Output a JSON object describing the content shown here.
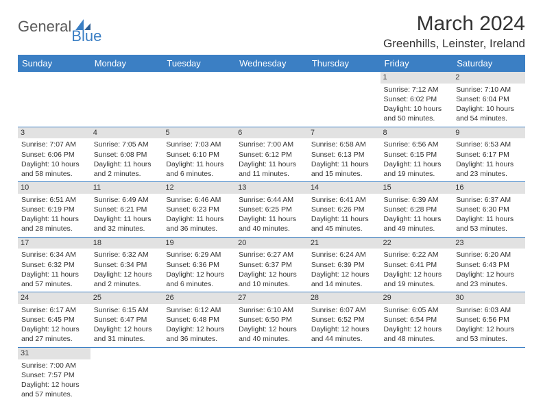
{
  "logo": {
    "text1": "General",
    "text2": "Blue"
  },
  "title": "March 2024",
  "location": "Greenhills, Leinster, Ireland",
  "colors": {
    "header_bg": "#3b7fc4",
    "header_text": "#ffffff",
    "daynum_bg": "#e2e2e2",
    "cell_border": "#3b7fc4",
    "body_text": "#333333",
    "logo_gray": "#5a5a5a",
    "logo_blue": "#3b7fc4"
  },
  "weekdays": [
    "Sunday",
    "Monday",
    "Tuesday",
    "Wednesday",
    "Thursday",
    "Friday",
    "Saturday"
  ],
  "weeks": [
    [
      {
        "empty": true
      },
      {
        "empty": true
      },
      {
        "empty": true
      },
      {
        "empty": true
      },
      {
        "empty": true
      },
      {
        "day": "1",
        "sunrise": "Sunrise: 7:12 AM",
        "sunset": "Sunset: 6:02 PM",
        "daylight1": "Daylight: 10 hours",
        "daylight2": "and 50 minutes."
      },
      {
        "day": "2",
        "sunrise": "Sunrise: 7:10 AM",
        "sunset": "Sunset: 6:04 PM",
        "daylight1": "Daylight: 10 hours",
        "daylight2": "and 54 minutes."
      }
    ],
    [
      {
        "day": "3",
        "sunrise": "Sunrise: 7:07 AM",
        "sunset": "Sunset: 6:06 PM",
        "daylight1": "Daylight: 10 hours",
        "daylight2": "and 58 minutes."
      },
      {
        "day": "4",
        "sunrise": "Sunrise: 7:05 AM",
        "sunset": "Sunset: 6:08 PM",
        "daylight1": "Daylight: 11 hours",
        "daylight2": "and 2 minutes."
      },
      {
        "day": "5",
        "sunrise": "Sunrise: 7:03 AM",
        "sunset": "Sunset: 6:10 PM",
        "daylight1": "Daylight: 11 hours",
        "daylight2": "and 6 minutes."
      },
      {
        "day": "6",
        "sunrise": "Sunrise: 7:00 AM",
        "sunset": "Sunset: 6:12 PM",
        "daylight1": "Daylight: 11 hours",
        "daylight2": "and 11 minutes."
      },
      {
        "day": "7",
        "sunrise": "Sunrise: 6:58 AM",
        "sunset": "Sunset: 6:13 PM",
        "daylight1": "Daylight: 11 hours",
        "daylight2": "and 15 minutes."
      },
      {
        "day": "8",
        "sunrise": "Sunrise: 6:56 AM",
        "sunset": "Sunset: 6:15 PM",
        "daylight1": "Daylight: 11 hours",
        "daylight2": "and 19 minutes."
      },
      {
        "day": "9",
        "sunrise": "Sunrise: 6:53 AM",
        "sunset": "Sunset: 6:17 PM",
        "daylight1": "Daylight: 11 hours",
        "daylight2": "and 23 minutes."
      }
    ],
    [
      {
        "day": "10",
        "sunrise": "Sunrise: 6:51 AM",
        "sunset": "Sunset: 6:19 PM",
        "daylight1": "Daylight: 11 hours",
        "daylight2": "and 28 minutes."
      },
      {
        "day": "11",
        "sunrise": "Sunrise: 6:49 AM",
        "sunset": "Sunset: 6:21 PM",
        "daylight1": "Daylight: 11 hours",
        "daylight2": "and 32 minutes."
      },
      {
        "day": "12",
        "sunrise": "Sunrise: 6:46 AM",
        "sunset": "Sunset: 6:23 PM",
        "daylight1": "Daylight: 11 hours",
        "daylight2": "and 36 minutes."
      },
      {
        "day": "13",
        "sunrise": "Sunrise: 6:44 AM",
        "sunset": "Sunset: 6:25 PM",
        "daylight1": "Daylight: 11 hours",
        "daylight2": "and 40 minutes."
      },
      {
        "day": "14",
        "sunrise": "Sunrise: 6:41 AM",
        "sunset": "Sunset: 6:26 PM",
        "daylight1": "Daylight: 11 hours",
        "daylight2": "and 45 minutes."
      },
      {
        "day": "15",
        "sunrise": "Sunrise: 6:39 AM",
        "sunset": "Sunset: 6:28 PM",
        "daylight1": "Daylight: 11 hours",
        "daylight2": "and 49 minutes."
      },
      {
        "day": "16",
        "sunrise": "Sunrise: 6:37 AM",
        "sunset": "Sunset: 6:30 PM",
        "daylight1": "Daylight: 11 hours",
        "daylight2": "and 53 minutes."
      }
    ],
    [
      {
        "day": "17",
        "sunrise": "Sunrise: 6:34 AM",
        "sunset": "Sunset: 6:32 PM",
        "daylight1": "Daylight: 11 hours",
        "daylight2": "and 57 minutes."
      },
      {
        "day": "18",
        "sunrise": "Sunrise: 6:32 AM",
        "sunset": "Sunset: 6:34 PM",
        "daylight1": "Daylight: 12 hours",
        "daylight2": "and 2 minutes."
      },
      {
        "day": "19",
        "sunrise": "Sunrise: 6:29 AM",
        "sunset": "Sunset: 6:36 PM",
        "daylight1": "Daylight: 12 hours",
        "daylight2": "and 6 minutes."
      },
      {
        "day": "20",
        "sunrise": "Sunrise: 6:27 AM",
        "sunset": "Sunset: 6:37 PM",
        "daylight1": "Daylight: 12 hours",
        "daylight2": "and 10 minutes."
      },
      {
        "day": "21",
        "sunrise": "Sunrise: 6:24 AM",
        "sunset": "Sunset: 6:39 PM",
        "daylight1": "Daylight: 12 hours",
        "daylight2": "and 14 minutes."
      },
      {
        "day": "22",
        "sunrise": "Sunrise: 6:22 AM",
        "sunset": "Sunset: 6:41 PM",
        "daylight1": "Daylight: 12 hours",
        "daylight2": "and 19 minutes."
      },
      {
        "day": "23",
        "sunrise": "Sunrise: 6:20 AM",
        "sunset": "Sunset: 6:43 PM",
        "daylight1": "Daylight: 12 hours",
        "daylight2": "and 23 minutes."
      }
    ],
    [
      {
        "day": "24",
        "sunrise": "Sunrise: 6:17 AM",
        "sunset": "Sunset: 6:45 PM",
        "daylight1": "Daylight: 12 hours",
        "daylight2": "and 27 minutes."
      },
      {
        "day": "25",
        "sunrise": "Sunrise: 6:15 AM",
        "sunset": "Sunset: 6:47 PM",
        "daylight1": "Daylight: 12 hours",
        "daylight2": "and 31 minutes."
      },
      {
        "day": "26",
        "sunrise": "Sunrise: 6:12 AM",
        "sunset": "Sunset: 6:48 PM",
        "daylight1": "Daylight: 12 hours",
        "daylight2": "and 36 minutes."
      },
      {
        "day": "27",
        "sunrise": "Sunrise: 6:10 AM",
        "sunset": "Sunset: 6:50 PM",
        "daylight1": "Daylight: 12 hours",
        "daylight2": "and 40 minutes."
      },
      {
        "day": "28",
        "sunrise": "Sunrise: 6:07 AM",
        "sunset": "Sunset: 6:52 PM",
        "daylight1": "Daylight: 12 hours",
        "daylight2": "and 44 minutes."
      },
      {
        "day": "29",
        "sunrise": "Sunrise: 6:05 AM",
        "sunset": "Sunset: 6:54 PM",
        "daylight1": "Daylight: 12 hours",
        "daylight2": "and 48 minutes."
      },
      {
        "day": "30",
        "sunrise": "Sunrise: 6:03 AM",
        "sunset": "Sunset: 6:56 PM",
        "daylight1": "Daylight: 12 hours",
        "daylight2": "and 53 minutes."
      }
    ],
    [
      {
        "day": "31",
        "sunrise": "Sunrise: 7:00 AM",
        "sunset": "Sunset: 7:57 PM",
        "daylight1": "Daylight: 12 hours",
        "daylight2": "and 57 minutes."
      },
      {
        "empty": true
      },
      {
        "empty": true
      },
      {
        "empty": true
      },
      {
        "empty": true
      },
      {
        "empty": true
      },
      {
        "empty": true
      }
    ]
  ]
}
